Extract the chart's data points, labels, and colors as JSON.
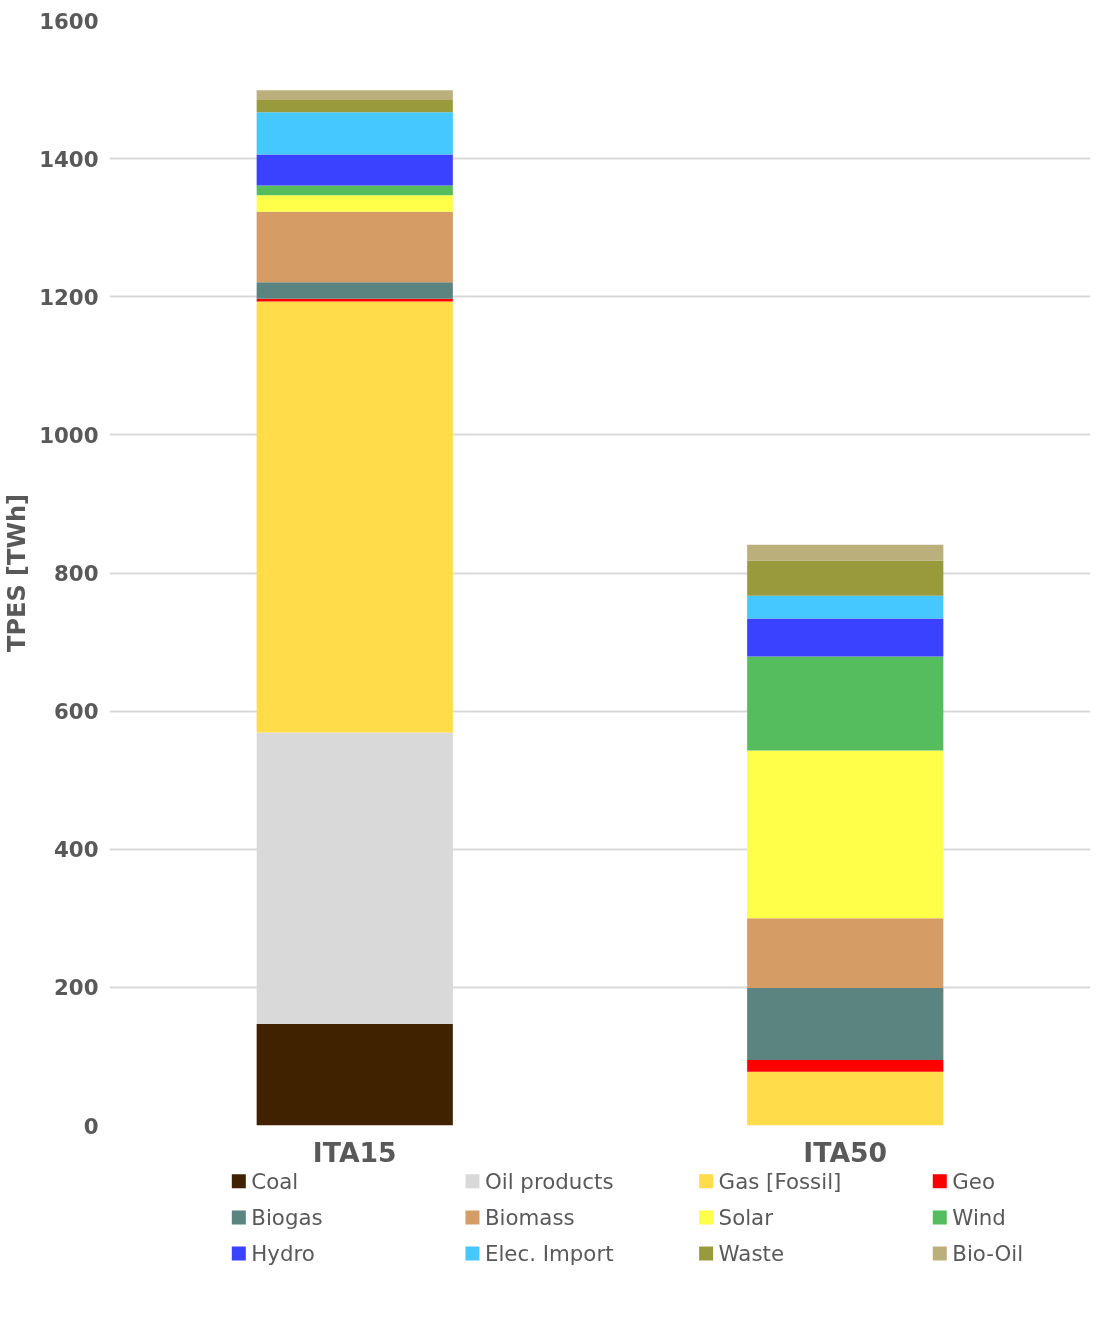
{
  "chart_data": {
    "type": "bar",
    "stacked": true,
    "ylabel": "TPES [TWh]",
    "categories": [
      "ITA15",
      "ITA50"
    ],
    "series": [
      {
        "name": "Coal",
        "color": "#402200",
        "values": [
          147,
          0
        ]
      },
      {
        "name": "Oil products",
        "color": "#d9d9d9",
        "values": [
          422,
          0
        ]
      },
      {
        "name": "Gas [Fossil]",
        "color": "#ffdc4a",
        "values": [
          624,
          78
        ]
      },
      {
        "name": "Geo",
        "color": "#ff0000",
        "values": [
          4,
          17
        ]
      },
      {
        "name": "Biogas",
        "color": "#5b8380",
        "values": [
          24,
          104
        ]
      },
      {
        "name": "Biomass",
        "color": "#d69c66",
        "values": [
          102,
          101
        ]
      },
      {
        "name": "Solar",
        "color": "#ffff4a",
        "values": [
          24,
          243
        ]
      },
      {
        "name": "Wind",
        "color": "#55bd5e",
        "values": [
          14,
          136
        ]
      },
      {
        "name": "Hydro",
        "color": "#3a42ff",
        "values": [
          45,
          55
        ]
      },
      {
        "name": "Elec. Import",
        "color": "#45c8ff",
        "values": [
          61,
          33
        ]
      },
      {
        "name": "Waste",
        "color": "#999a3c",
        "values": [
          18,
          51
        ]
      },
      {
        "name": "Bio-Oil",
        "color": "#bbb07c",
        "values": [
          14,
          23
        ]
      }
    ],
    "ylim": [
      0,
      1600
    ],
    "yticks": [
      0,
      200,
      400,
      600,
      800,
      1000,
      1200,
      1400,
      1600
    ],
    "grid": "y",
    "legend": "bottom"
  }
}
